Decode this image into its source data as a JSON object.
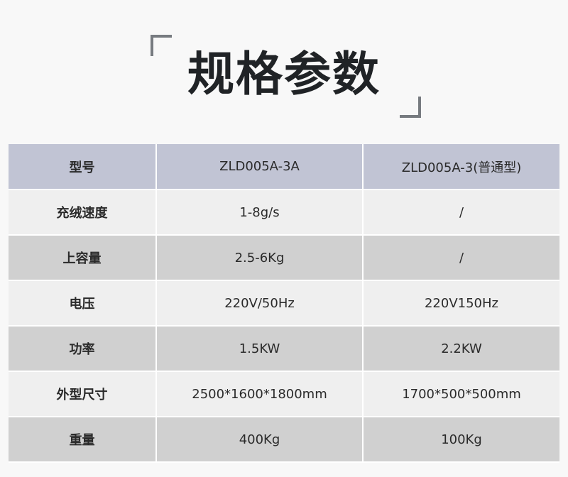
{
  "title": "规格参数",
  "colors": {
    "header_bg": "#c1c4d4",
    "row_light": "#efefef",
    "row_dark": "#d0d0d0",
    "title": "#202326",
    "bracket": "#777b80"
  },
  "table": {
    "header": [
      "型号",
      "ZLD005A-3A",
      "ZLD005A-3(普通型)"
    ],
    "rows": [
      [
        "充绒速度",
        "1-8g/s",
        "/"
      ],
      [
        "上容量",
        "2.5-6Kg",
        "/"
      ],
      [
        "电压",
        "220V/50Hz",
        "220V150Hz"
      ],
      [
        "功率",
        "1.5KW",
        "2.2KW"
      ],
      [
        "外型尺寸",
        "2500*1600*1800mm",
        "1700*500*500mm"
      ],
      [
        "重量",
        "400Kg",
        "100Kg"
      ]
    ]
  }
}
